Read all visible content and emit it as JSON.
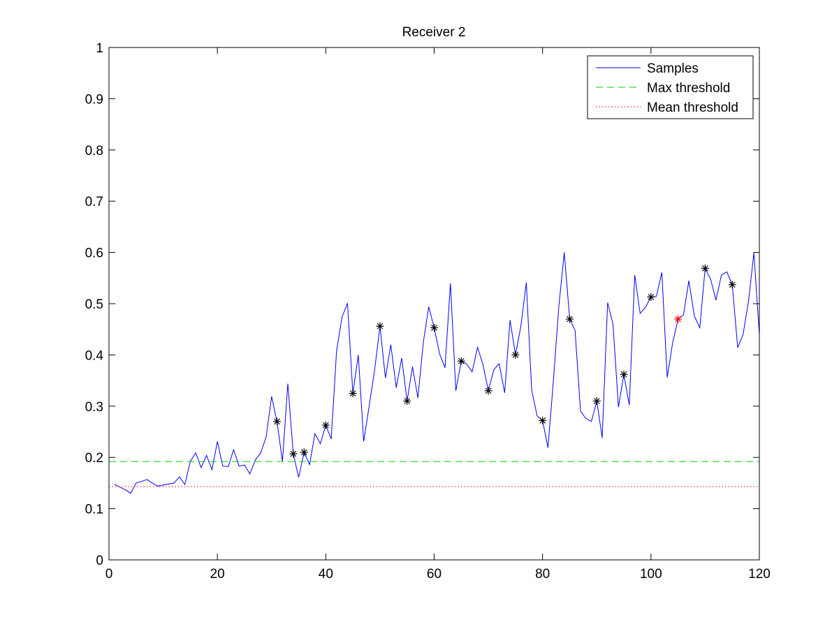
{
  "chart_data": {
    "type": "line",
    "title": "Receiver 2",
    "xlabel": "",
    "ylabel": "",
    "xlim": [
      0,
      120
    ],
    "ylim": [
      0,
      1
    ],
    "xticks": [
      0,
      20,
      40,
      60,
      80,
      100,
      120
    ],
    "yticks": [
      0,
      0.1,
      0.2,
      0.3,
      0.4,
      0.5,
      0.6,
      0.7,
      0.8,
      0.9,
      1
    ],
    "xtick_labels": [
      "0",
      "20",
      "40",
      "60",
      "80",
      "100",
      "120"
    ],
    "ytick_labels": [
      "0",
      "0.1",
      "0.2",
      "0.3",
      "0.4",
      "0.5",
      "0.6",
      "0.7",
      "0.8",
      "0.9",
      "1"
    ],
    "grid": false,
    "legend_position": "top-right",
    "series": [
      {
        "name": "Samples",
        "color": "#0000ff",
        "style": "solid",
        "x": [
          1,
          2,
          3,
          4,
          5,
          6,
          7,
          8,
          9,
          10,
          11,
          12,
          13,
          14,
          15,
          16,
          17,
          18,
          19,
          20,
          21,
          22,
          23,
          24,
          25,
          26,
          27,
          28,
          29,
          30,
          31,
          32,
          33,
          34,
          35,
          36,
          37,
          38,
          39,
          40,
          41,
          42,
          43,
          44,
          45,
          46,
          47,
          48,
          49,
          50,
          51,
          52,
          53,
          54,
          55,
          56,
          57,
          58,
          59,
          60,
          61,
          62,
          63,
          64,
          65,
          66,
          67,
          68,
          69,
          70,
          71,
          72,
          73,
          74,
          75,
          76,
          77,
          78,
          79,
          80,
          81,
          82,
          83,
          84,
          85,
          86,
          87,
          88,
          89,
          90,
          91,
          92,
          93,
          94,
          95,
          96,
          97,
          98,
          99,
          100,
          101,
          102,
          103,
          104,
          105,
          106,
          107,
          108,
          109,
          110,
          111,
          112,
          113,
          114,
          115,
          116,
          117,
          118,
          119,
          120
        ],
        "y": [
          0.148,
          0.142,
          0.137,
          0.13,
          0.15,
          0.153,
          0.157,
          0.15,
          0.144,
          0.146,
          0.148,
          0.15,
          0.162,
          0.147,
          0.192,
          0.209,
          0.18,
          0.204,
          0.176,
          0.231,
          0.183,
          0.182,
          0.215,
          0.183,
          0.185,
          0.168,
          0.195,
          0.209,
          0.24,
          0.319,
          0.27,
          0.192,
          0.344,
          0.207,
          0.161,
          0.21,
          0.186,
          0.246,
          0.227,
          0.263,
          0.236,
          0.408,
          0.474,
          0.501,
          0.325,
          0.4,
          0.231,
          0.3,
          0.37,
          0.456,
          0.355,
          0.42,
          0.336,
          0.394,
          0.31,
          0.377,
          0.316,
          0.425,
          0.494,
          0.453,
          0.402,
          0.375,
          0.54,
          0.33,
          0.388,
          0.382,
          0.367,
          0.415,
          0.381,
          0.33,
          0.371,
          0.383,
          0.326,
          0.468,
          0.4,
          0.456,
          0.541,
          0.331,
          0.281,
          0.272,
          0.219,
          0.35,
          0.494,
          0.6,
          0.47,
          0.448,
          0.29,
          0.276,
          0.27,
          0.31,
          0.238,
          0.502,
          0.46,
          0.298,
          0.362,
          0.302,
          0.556,
          0.481,
          0.493,
          0.513,
          0.514,
          0.561,
          0.356,
          0.424,
          0.47,
          0.478,
          0.545,
          0.476,
          0.453,
          0.569,
          0.548,
          0.507,
          0.556,
          0.562,
          0.537,
          0.414,
          0.44,
          0.505,
          0.599,
          0.44
        ]
      },
      {
        "name": "Max threshold",
        "color": "#00cc00",
        "style": "dashed",
        "x": [
          0,
          120
        ],
        "y": [
          0.192,
          0.192
        ]
      },
      {
        "name": "Mean threshold",
        "color": "#ff0000",
        "style": "dotted",
        "x": [
          0,
          120
        ],
        "y": [
          0.143,
          0.143
        ]
      }
    ],
    "markers": [
      {
        "x": 31,
        "y": 0.27,
        "color": "#000000"
      },
      {
        "x": 34,
        "y": 0.207,
        "color": "#000000"
      },
      {
        "x": 36,
        "y": 0.21,
        "color": "#000000"
      },
      {
        "x": 40,
        "y": 0.263,
        "color": "#000000"
      },
      {
        "x": 45,
        "y": 0.325,
        "color": "#000000"
      },
      {
        "x": 50,
        "y": 0.456,
        "color": "#000000"
      },
      {
        "x": 55,
        "y": 0.31,
        "color": "#000000"
      },
      {
        "x": 60,
        "y": 0.453,
        "color": "#000000"
      },
      {
        "x": 65,
        "y": 0.388,
        "color": "#000000"
      },
      {
        "x": 70,
        "y": 0.33,
        "color": "#000000"
      },
      {
        "x": 75,
        "y": 0.4,
        "color": "#000000"
      },
      {
        "x": 80,
        "y": 0.272,
        "color": "#000000"
      },
      {
        "x": 85,
        "y": 0.47,
        "color": "#000000"
      },
      {
        "x": 90,
        "y": 0.31,
        "color": "#000000"
      },
      {
        "x": 95,
        "y": 0.362,
        "color": "#000000"
      },
      {
        "x": 100,
        "y": 0.513,
        "color": "#000000"
      },
      {
        "x": 105,
        "y": 0.47,
        "color": "#ff0000"
      },
      {
        "x": 110,
        "y": 0.569,
        "color": "#000000"
      },
      {
        "x": 115,
        "y": 0.537,
        "color": "#000000"
      }
    ]
  }
}
